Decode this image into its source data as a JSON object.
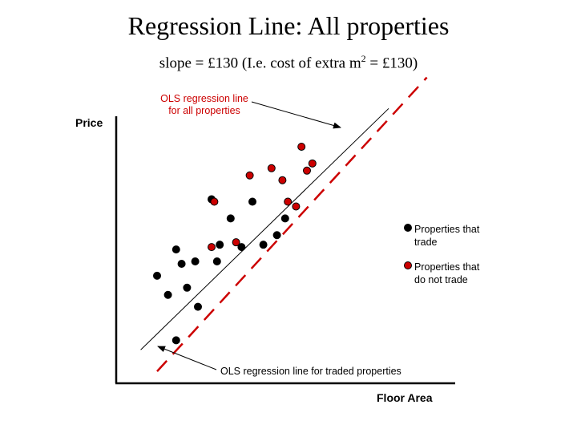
{
  "title": "Regression Line: All properties",
  "subtitle": {
    "before": "slope = £130 (I.e. cost of extra m",
    "sup": "2",
    "after": " = £130)"
  },
  "chart_data": {
    "type": "scatter",
    "xlabel": "Floor Area",
    "ylabel": "Price",
    "xlim": [
      0,
      100
    ],
    "ylim": [
      0,
      100
    ],
    "grid": false,
    "legend_position": "right",
    "colors": {
      "traded": "#000000",
      "non_traded": "#cc0000",
      "annotation": "#cc0000",
      "axes": "#000000"
    },
    "series": [
      {
        "name": "Properties that trade",
        "color": "#000000",
        "points": [
          [
            22,
            18
          ],
          [
            19,
            37
          ],
          [
            26,
            40
          ],
          [
            30,
            32
          ],
          [
            15,
            45
          ],
          [
            24,
            50
          ],
          [
            29,
            51
          ],
          [
            37,
            51
          ],
          [
            22,
            56
          ],
          [
            38,
            58
          ],
          [
            46,
            57
          ],
          [
            42,
            69
          ],
          [
            54,
            58
          ],
          [
            59,
            62
          ],
          [
            62,
            69
          ],
          [
            35,
            77
          ],
          [
            50,
            76
          ]
        ]
      },
      {
        "name": "Properties that do not trade",
        "color": "#cc0000",
        "points": [
          [
            36,
            76
          ],
          [
            35,
            57
          ],
          [
            44,
            59
          ],
          [
            49,
            87
          ],
          [
            61,
            85
          ],
          [
            57,
            90
          ],
          [
            68,
            99
          ],
          [
            72,
            92
          ],
          [
            70,
            89
          ],
          [
            66,
            74
          ],
          [
            63,
            76
          ]
        ]
      }
    ],
    "lines": [
      {
        "name": "OLS regression line for traded properties",
        "style": "solid",
        "color": "#000000",
        "from": [
          9,
          14
        ],
        "to": [
          100,
          115
        ]
      },
      {
        "name": "OLS regression line for all properties",
        "style": "dashed",
        "color": "#cc0000",
        "from": [
          15,
          5
        ],
        "to": [
          114,
          128
        ]
      }
    ],
    "annotations": [
      {
        "text_lines": [
          "OLS regression line",
          "for all properties"
        ],
        "color": "#cc0000"
      },
      {
        "text_lines": [
          "OLS regression line for traded properties"
        ],
        "color": "#000000"
      }
    ],
    "legend": [
      {
        "label_lines": [
          "Properties that",
          "trade"
        ],
        "color": "#000000"
      },
      {
        "label_lines": [
          "Properties that",
          "do not trade"
        ],
        "color": "#cc0000"
      }
    ]
  }
}
